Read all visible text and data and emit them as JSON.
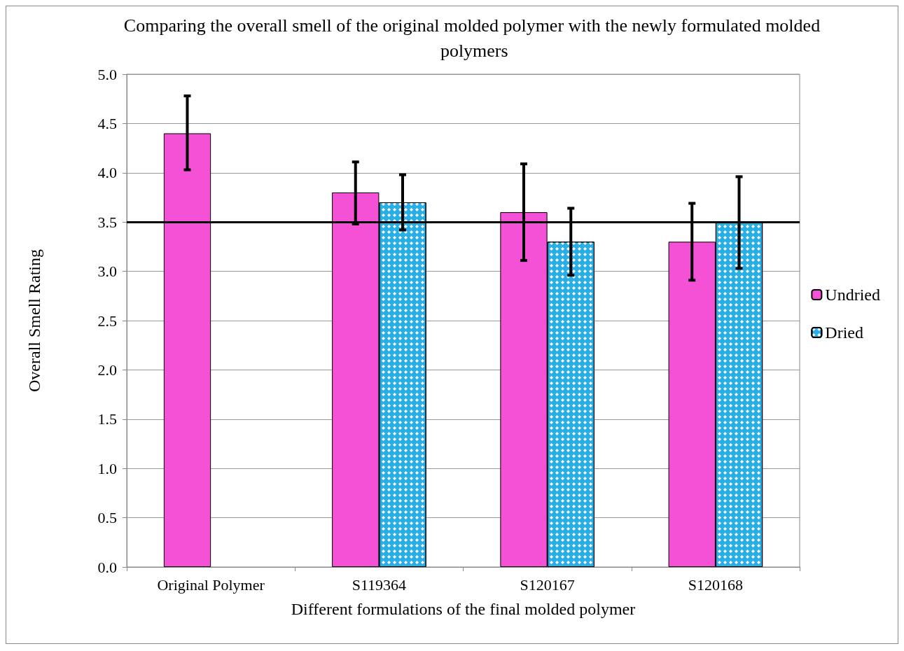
{
  "chart_data": {
    "type": "bar",
    "title": "Comparing the overall smell of the original molded polymer with the newly formulated molded polymers",
    "xlabel": "Different formulations of the final molded polymer",
    "ylabel": "Overall Smell Rating",
    "categories": [
      "Original Polymer",
      "S119364",
      "S120167",
      "S120168"
    ],
    "series": [
      {
        "name": "Undried",
        "color": "#f451d6",
        "values": [
          4.4,
          3.8,
          3.6,
          3.3
        ],
        "errors": [
          [
            4.03,
            4.78
          ],
          [
            3.48,
            4.11
          ],
          [
            3.11,
            4.09
          ],
          [
            2.91,
            3.69
          ]
        ]
      },
      {
        "name": "Dried",
        "color": "#2aaee8",
        "values": [
          null,
          3.7,
          3.3,
          3.5
        ],
        "errors": [
          null,
          [
            3.42,
            3.98
          ],
          [
            2.96,
            3.64
          ],
          [
            3.03,
            3.96
          ]
        ]
      }
    ],
    "ylim": [
      0,
      5
    ],
    "yticks": [
      {
        "value": 0,
        "label": "0.0"
      },
      {
        "value": 0.5,
        "label": "0.5"
      },
      {
        "value": 1,
        "label": "1.0"
      },
      {
        "value": 1.5,
        "label": "1.5"
      },
      {
        "value": 2,
        "label": "2.0"
      },
      {
        "value": 2.5,
        "label": "2.5"
      },
      {
        "value": 3,
        "label": "3.0"
      },
      {
        "value": 3.5,
        "label": "3.5"
      },
      {
        "value": 4,
        "label": "4.0"
      },
      {
        "value": 4.5,
        "label": "4.5"
      },
      {
        "value": 5,
        "label": "5.0"
      }
    ],
    "ref_lines": [
      {
        "axis": "y",
        "value": 3.5,
        "color": "#000000"
      }
    ],
    "grid": "y",
    "legend": "right"
  }
}
